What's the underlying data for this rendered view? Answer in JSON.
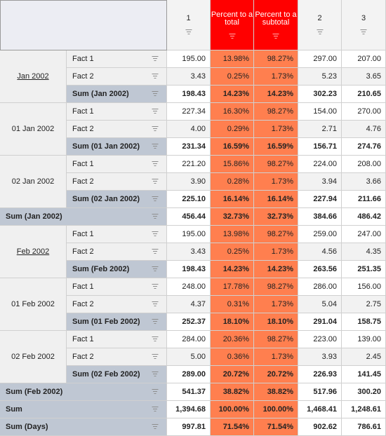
{
  "columns": [
    {
      "label": "1"
    },
    {
      "label": "Percent to a total"
    },
    {
      "label": "Percent to a subtotal"
    },
    {
      "label": "2"
    },
    {
      "label": "3"
    }
  ],
  "groups": [
    {
      "label": "Jan 2002",
      "subgroups": [
        {
          "label": "",
          "rows": [
            {
              "label": "Fact 1",
              "values": [
                "195.00",
                "13.98%",
                "98.27%",
                "297.00",
                "207.00"
              ]
            },
            {
              "label": "Fact 2",
              "values": [
                "3.43",
                "0.25%",
                "1.73%",
                "5.23",
                "3.65"
              ]
            }
          ],
          "sum": {
            "label": "Sum (Jan 2002)",
            "values": [
              "198.43",
              "14.23%",
              "14.23%",
              "302.23",
              "210.65"
            ]
          }
        },
        {
          "label": "01 Jan 2002",
          "rows": [
            {
              "label": "Fact 1",
              "values": [
                "227.34",
                "16.30%",
                "98.27%",
                "154.00",
                "270.00"
              ]
            },
            {
              "label": "Fact 2",
              "values": [
                "4.00",
                "0.29%",
                "1.73%",
                "2.71",
                "4.76"
              ]
            }
          ],
          "sum": {
            "label": "Sum (01 Jan 2002)",
            "values": [
              "231.34",
              "16.59%",
              "16.59%",
              "156.71",
              "274.76"
            ]
          }
        },
        {
          "label": "02 Jan 2002",
          "rows": [
            {
              "label": "Fact 1",
              "values": [
                "221.20",
                "15.86%",
                "98.27%",
                "224.00",
                "208.00"
              ]
            },
            {
              "label": "Fact 2",
              "values": [
                "3.90",
                "0.28%",
                "1.73%",
                "3.94",
                "3.66"
              ]
            }
          ],
          "sum": {
            "label": "Sum (02 Jan 2002)",
            "values": [
              "225.10",
              "16.14%",
              "16.14%",
              "227.94",
              "211.66"
            ]
          }
        }
      ],
      "sum": {
        "label": "Sum (Jan 2002)",
        "values": [
          "456.44",
          "32.73%",
          "32.73%",
          "384.66",
          "486.42"
        ]
      }
    },
    {
      "label": "Feb 2002",
      "subgroups": [
        {
          "label": "",
          "rows": [
            {
              "label": "Fact 1",
              "values": [
                "195.00",
                "13.98%",
                "98.27%",
                "259.00",
                "247.00"
              ]
            },
            {
              "label": "Fact 2",
              "values": [
                "3.43",
                "0.25%",
                "1.73%",
                "4.56",
                "4.35"
              ]
            }
          ],
          "sum": {
            "label": "Sum (Feb 2002)",
            "values": [
              "198.43",
              "14.23%",
              "14.23%",
              "263.56",
              "251.35"
            ]
          }
        },
        {
          "label": "01 Feb 2002",
          "rows": [
            {
              "label": "Fact 1",
              "values": [
                "248.00",
                "17.78%",
                "98.27%",
                "286.00",
                "156.00"
              ]
            },
            {
              "label": "Fact 2",
              "values": [
                "4.37",
                "0.31%",
                "1.73%",
                "5.04",
                "2.75"
              ]
            }
          ],
          "sum": {
            "label": "Sum (01 Feb 2002)",
            "values": [
              "252.37",
              "18.10%",
              "18.10%",
              "291.04",
              "158.75"
            ]
          }
        },
        {
          "label": "02 Feb 2002",
          "rows": [
            {
              "label": "Fact 1",
              "values": [
                "284.00",
                "20.36%",
                "98.27%",
                "223.00",
                "139.00"
              ]
            },
            {
              "label": "Fact 2",
              "values": [
                "5.00",
                "0.36%",
                "1.73%",
                "3.93",
                "2.45"
              ]
            }
          ],
          "sum": {
            "label": "Sum (02 Feb 2002)",
            "values": [
              "289.00",
              "20.72%",
              "20.72%",
              "226.93",
              "141.45"
            ]
          }
        }
      ],
      "sum": {
        "label": "Sum (Feb 2002)",
        "values": [
          "541.37",
          "38.82%",
          "38.82%",
          "517.96",
          "300.20"
        ]
      }
    }
  ],
  "totals": [
    {
      "label": "Sum",
      "values": [
        "1,394.68",
        "100.00%",
        "100.00%",
        "1,468.41",
        "1,248.61"
      ]
    },
    {
      "label": "Sum (Days)",
      "values": [
        "997.81",
        "71.54%",
        "71.54%",
        "902.62",
        "786.61"
      ]
    }
  ],
  "icons": {
    "filter": "filter-funnel-icon"
  },
  "colors": {
    "header_red": "#ff0000",
    "percent_orange": "#ff7f4f",
    "sum_row": "#bfc7d3"
  }
}
